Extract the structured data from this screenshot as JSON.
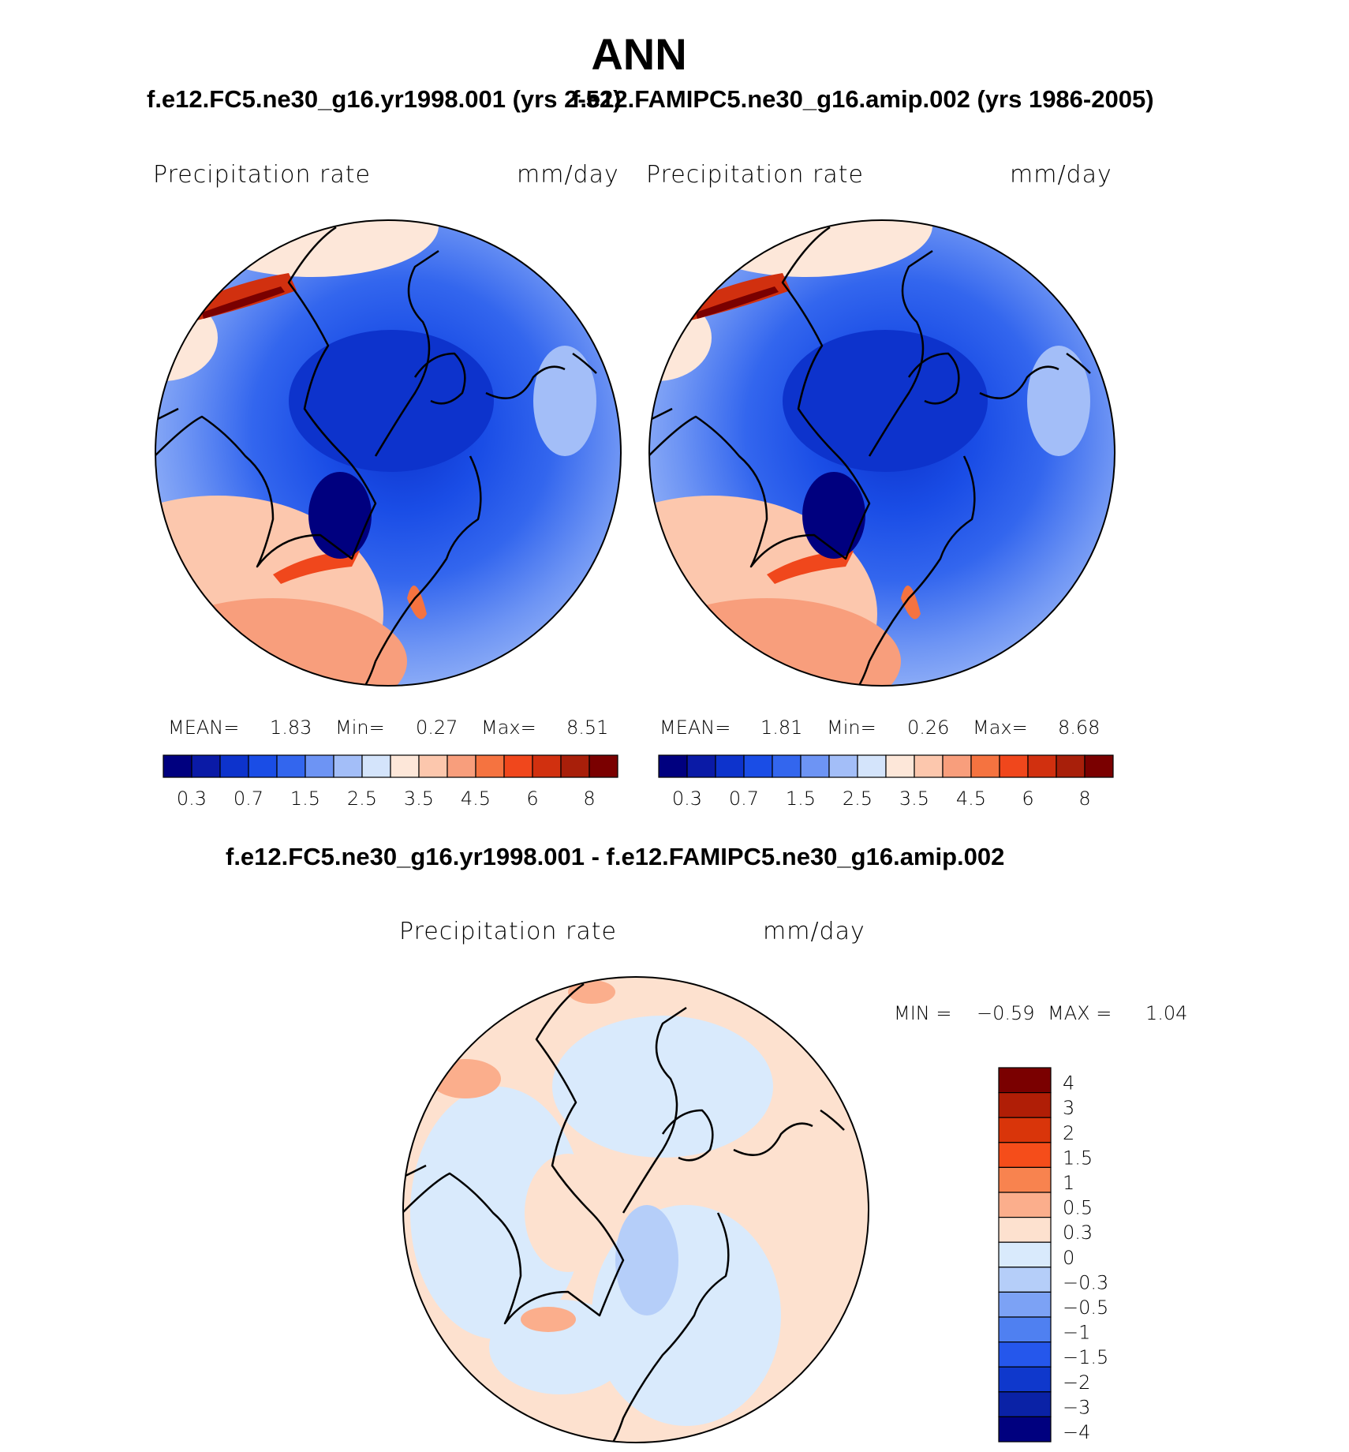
{
  "header": {
    "title": "ANN",
    "case_left": "f.e12.FC5.ne30_g16.yr1998.001 (yrs 2-52)",
    "case_right": "f.e12.FAMIPC5.ne30_g16.amip.002 (yrs 1986-2005)",
    "diff_title": "f.e12.FC5.ne30_g16.yr1998.001 - f.e12.FAMIPC5.ne30_g16.amip.002"
  },
  "panels": {
    "left": {
      "variable": "Precipitation  rate",
      "units": "mm/day",
      "mean_label": "MEAN=",
      "mean": "1.83",
      "min_label": "Min=",
      "min": "0.27",
      "max_label": "Max=",
      "max": "8.51"
    },
    "right": {
      "variable": "Precipitation  rate",
      "units": "mm/day",
      "mean_label": "MEAN=",
      "mean": "1.81",
      "min_label": "Min=",
      "min": "0.26",
      "max_label": "Max=",
      "max": "8.68"
    },
    "diff": {
      "variable": "Precipitation  rate",
      "units": "mm/day",
      "min_label": "MIN  =",
      "min": "−0.59",
      "max_label": "MAX  =",
      "max": "1.04"
    }
  },
  "colorbars": {
    "mean": {
      "colors": [
        "#00007f",
        "#0a1aa6",
        "#0d33cc",
        "#1a4de6",
        "#3366ee",
        "#6d94f4",
        "#a3bef8",
        "#d4e4fb",
        "#fde7d9",
        "#fcc7ad",
        "#f89e7c",
        "#f57340",
        "#f0471c",
        "#d1300f",
        "#a81f0a",
        "#7a0000"
      ],
      "tick_labels": [
        "0.3",
        "0.7",
        "1.5",
        "2.5",
        "3.5",
        "4.5",
        "6",
        "8"
      ],
      "tick_after_box": [
        1,
        3,
        5,
        7,
        9,
        11,
        13,
        15
      ]
    },
    "diff": {
      "colors_top_to_bottom": [
        "#7a0000",
        "#b01e06",
        "#d9350a",
        "#f54d1a",
        "#f8834f",
        "#fbae8c",
        "#fde1cf",
        "#d9eafc",
        "#b5cef9",
        "#7ca2f5",
        "#4f80f1",
        "#2557ec",
        "#0f38cc",
        "#0a22a6",
        "#00007f"
      ],
      "tick_labels_top_to_bottom": [
        "4",
        "3",
        "2",
        "1.5",
        "1",
        "0.5",
        "0.3",
        "0",
        "−0.3",
        "−0.5",
        "−1",
        "−1.5",
        "−2",
        "−3",
        "−4"
      ]
    }
  },
  "chart_data": [
    {
      "type": "heatmap",
      "title": "Precipitation  rate",
      "units": "mm/day",
      "projection": "north polar stereographic",
      "levels": [
        0.2,
        0.3,
        0.5,
        0.7,
        1,
        1.5,
        2,
        2.5,
        3,
        3.5,
        4,
        4.5,
        5,
        6,
        7,
        8
      ],
      "stats": {
        "mean": 1.83,
        "min": 0.27,
        "max": 8.51
      }
    },
    {
      "type": "heatmap",
      "title": "Precipitation  rate",
      "units": "mm/day",
      "projection": "north polar stereographic",
      "levels": [
        0.2,
        0.3,
        0.5,
        0.7,
        1,
        1.5,
        2,
        2.5,
        3,
        3.5,
        4,
        4.5,
        5,
        6,
        7,
        8
      ],
      "stats": {
        "mean": 1.81,
        "min": 0.26,
        "max": 8.68
      }
    },
    {
      "type": "heatmap",
      "title": "Precipitation  rate",
      "units": "mm/day",
      "projection": "north polar stereographic",
      "levels": [
        -4,
        -3,
        -2,
        -1.5,
        -1,
        -0.5,
        -0.3,
        0,
        0.3,
        0.5,
        1,
        1.5,
        2,
        3,
        4
      ],
      "stats": {
        "min": -0.59,
        "max": 1.04
      }
    }
  ]
}
